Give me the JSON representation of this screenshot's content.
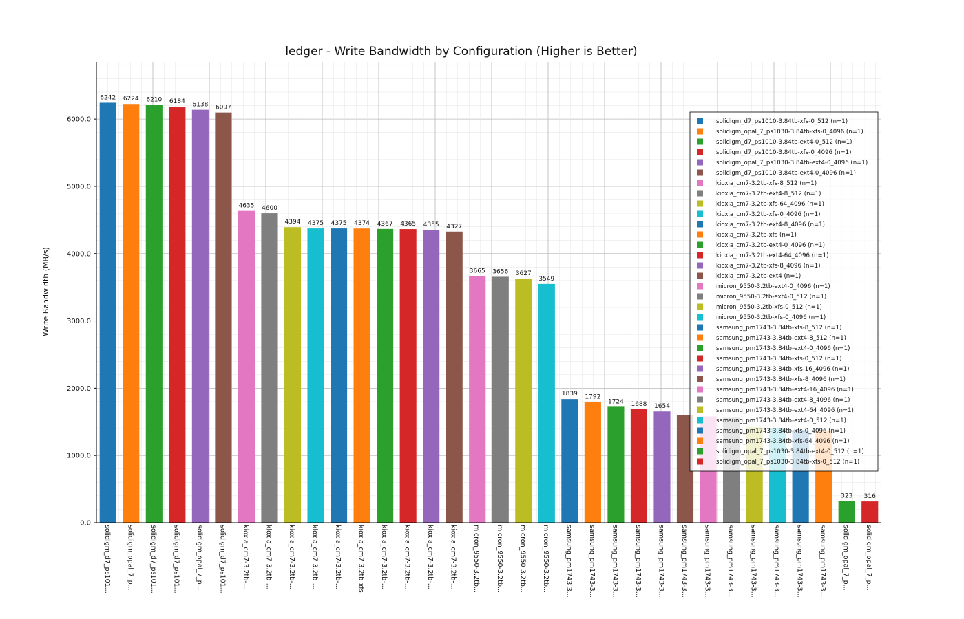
{
  "chart_data": {
    "type": "bar",
    "title": "ledger - Write Bandwidth by Configuration (Higher is Better)",
    "xlabel": "",
    "ylabel": "Write Bandwidth (MB/s)",
    "ylim": [
      0,
      6850
    ],
    "yticks": [
      "0.0",
      "1000.0",
      "2000.0",
      "3000.0",
      "4000.0",
      "5000.0",
      "6000.0"
    ],
    "grid": true,
    "legend_position": "right",
    "categories": [
      "solidigm_d7_ps101...",
      "solidigm_opal_7_p...",
      "solidigm_d7_ps101...",
      "solidigm_d7_ps101...",
      "solidigm_opal_7_p...",
      "solidigm_d7_ps101...",
      "kioxia_cm7-3.2tb-...",
      "kioxia_cm7-3.2tb-...",
      "kioxia_cm7-3.2tb-...",
      "kioxia_cm7-3.2tb-...",
      "kioxia_cm7-3.2tb-...",
      "kioxia_cm7-3.2tb-xfs",
      "kioxia_cm7-3.2tb-...",
      "kioxia_cm7-3.2tb-...",
      "kioxia_cm7-3.2tb-...",
      "kioxia_cm7-3.2tb-...",
      "micron_9550-3.2tb...",
      "micron_9550-3.2tb...",
      "micron_9550-3.2tb...",
      "micron_9550-3.2tb...",
      "samsung_pm1743-3...",
      "samsung_pm1743-3...",
      "samsung_pm1743-3...",
      "samsung_pm1743-3...",
      "samsung_pm1743-3...",
      "samsung_pm1743-3...",
      "samsung_pm1743-3...",
      "samsung_pm1743-3...",
      "samsung_pm1743-3...",
      "samsung_pm1743-3...",
      "samsung_pm1743-3...",
      "samsung_pm1743-3...",
      "solidigm_opal_7_p...",
      "solidigm_opal_7_p..."
    ],
    "values": [
      6242,
      6224,
      6210,
      6184,
      6138,
      6097,
      4635,
      4600,
      4394,
      4375,
      4375,
      4374,
      4367,
      4365,
      4355,
      4327,
      3665,
      3656,
      3627,
      3549,
      1839,
      1792,
      1724,
      1688,
      1654,
      1600,
      1580,
      1560,
      1420,
      1400,
      1380,
      1360,
      323,
      316
    ],
    "data_labels": [
      "6242",
      "6224",
      "6210",
      "6184",
      "6138",
      "6097",
      "4635",
      "4600",
      "4394",
      "4375",
      "4375",
      "4374",
      "4367",
      "4365",
      "4355",
      "4327",
      "3665",
      "3656",
      "3627",
      "3549",
      "1839",
      "1792",
      "1724",
      "1688",
      "1654",
      "",
      "",
      "",
      "",
      "",
      "",
      "",
      "323",
      "316"
    ],
    "colors": [
      "#1f77b4",
      "#ff7f0e",
      "#2ca02c",
      "#d62728",
      "#9467bd",
      "#8c564b",
      "#e377c2",
      "#7f7f7f",
      "#bcbd22",
      "#17becf"
    ],
    "legend": [
      "solidigm_d7_ps1010-3.84tb-xfs-0_512 (n=1)",
      "solidigm_opal_7_ps1030-3.84tb-xfs-0_4096 (n=1)",
      "solidigm_d7_ps1010-3.84tb-ext4-0_512 (n=1)",
      "solidigm_d7_ps1010-3.84tb-xfs-0_4096 (n=1)",
      "solidigm_opal_7_ps1030-3.84tb-ext4-0_4096 (n=1)",
      "solidigm_d7_ps1010-3.84tb-ext4-0_4096 (n=1)",
      "kioxia_cm7-3.2tb-xfs-8_512 (n=1)",
      "kioxia_cm7-3.2tb-ext4-8_512 (n=1)",
      "kioxia_cm7-3.2tb-xfs-64_4096 (n=1)",
      "kioxia_cm7-3.2tb-xfs-0_4096 (n=1)",
      "kioxia_cm7-3.2tb-ext4-8_4096 (n=1)",
      "kioxia_cm7-3.2tb-xfs (n=1)",
      "kioxia_cm7-3.2tb-ext4-0_4096 (n=1)",
      "kioxia_cm7-3.2tb-ext4-64_4096 (n=1)",
      "kioxia_cm7-3.2tb-xfs-8_4096 (n=1)",
      "kioxia_cm7-3.2tb-ext4 (n=1)",
      "micron_9550-3.2tb-ext4-0_4096 (n=1)",
      "micron_9550-3.2tb-ext4-0_512 (n=1)",
      "micron_9550-3.2tb-xfs-0_512 (n=1)",
      "micron_9550-3.2tb-xfs-0_4096 (n=1)",
      "samsung_pm1743-3.84tb-xfs-8_512 (n=1)",
      "samsung_pm1743-3.84tb-ext4-8_512 (n=1)",
      "samsung_pm1743-3.84tb-ext4-0_4096 (n=1)",
      "samsung_pm1743-3.84tb-xfs-0_512 (n=1)",
      "samsung_pm1743-3.84tb-xfs-16_4096 (n=1)",
      "samsung_pm1743-3.84tb-xfs-8_4096 (n=1)",
      "samsung_pm1743-3.84tb-ext4-16_4096 (n=1)",
      "samsung_pm1743-3.84tb-ext4-8_4096 (n=1)",
      "samsung_pm1743-3.84tb-ext4-64_4096 (n=1)",
      "samsung_pm1743-3.84tb-ext4-0_512 (n=1)",
      "samsung_pm1743-3.84tb-xfs-0_4096 (n=1)",
      "samsung_pm1743-3.84tb-xfs-64_4096 (n=1)",
      "solidigm_opal_7_ps1030-3.84tb-ext4-0_512 (n=1)",
      "solidigm_opal_7_ps1030-3.84tb-xfs-0_512 (n=1)"
    ]
  }
}
